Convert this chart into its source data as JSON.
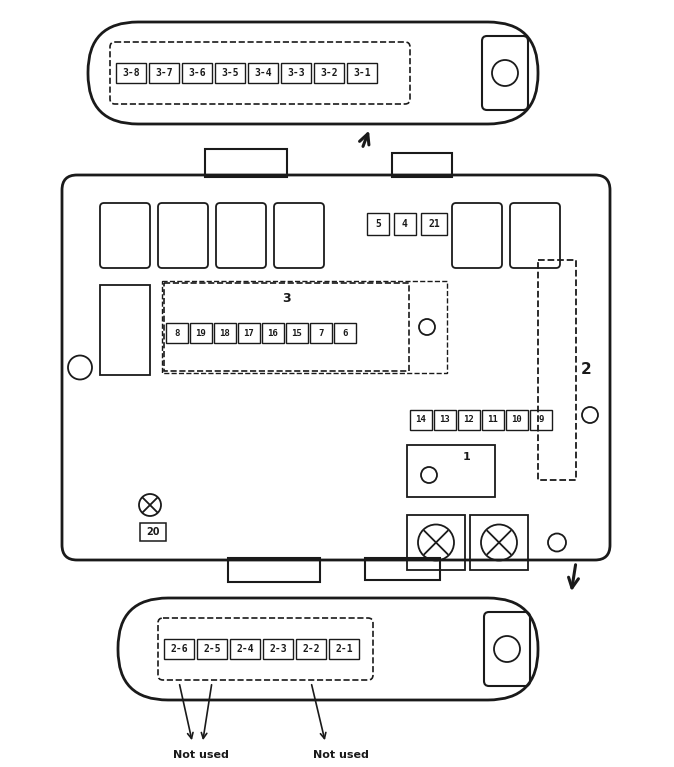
{
  "bg_color": "#ffffff",
  "line_color": "#1a1a1a",
  "top_fuses": [
    "3-8",
    "3-7",
    "3-6",
    "3-5",
    "3-4",
    "3-3",
    "3-2",
    "3-1"
  ],
  "bottom_fuses": [
    "2-6",
    "2-5",
    "2-4",
    "2-3",
    "2-2",
    "2-1"
  ],
  "row_labels": [
    "8",
    "19",
    "18",
    "17",
    "16",
    "15",
    "7",
    "6"
  ],
  "row2_labels": [
    "14",
    "13",
    "12",
    "11",
    "10",
    "9"
  ],
  "not_used_text": "Not used",
  "fig_w": 6.74,
  "fig_h": 7.67,
  "dpi": 100
}
